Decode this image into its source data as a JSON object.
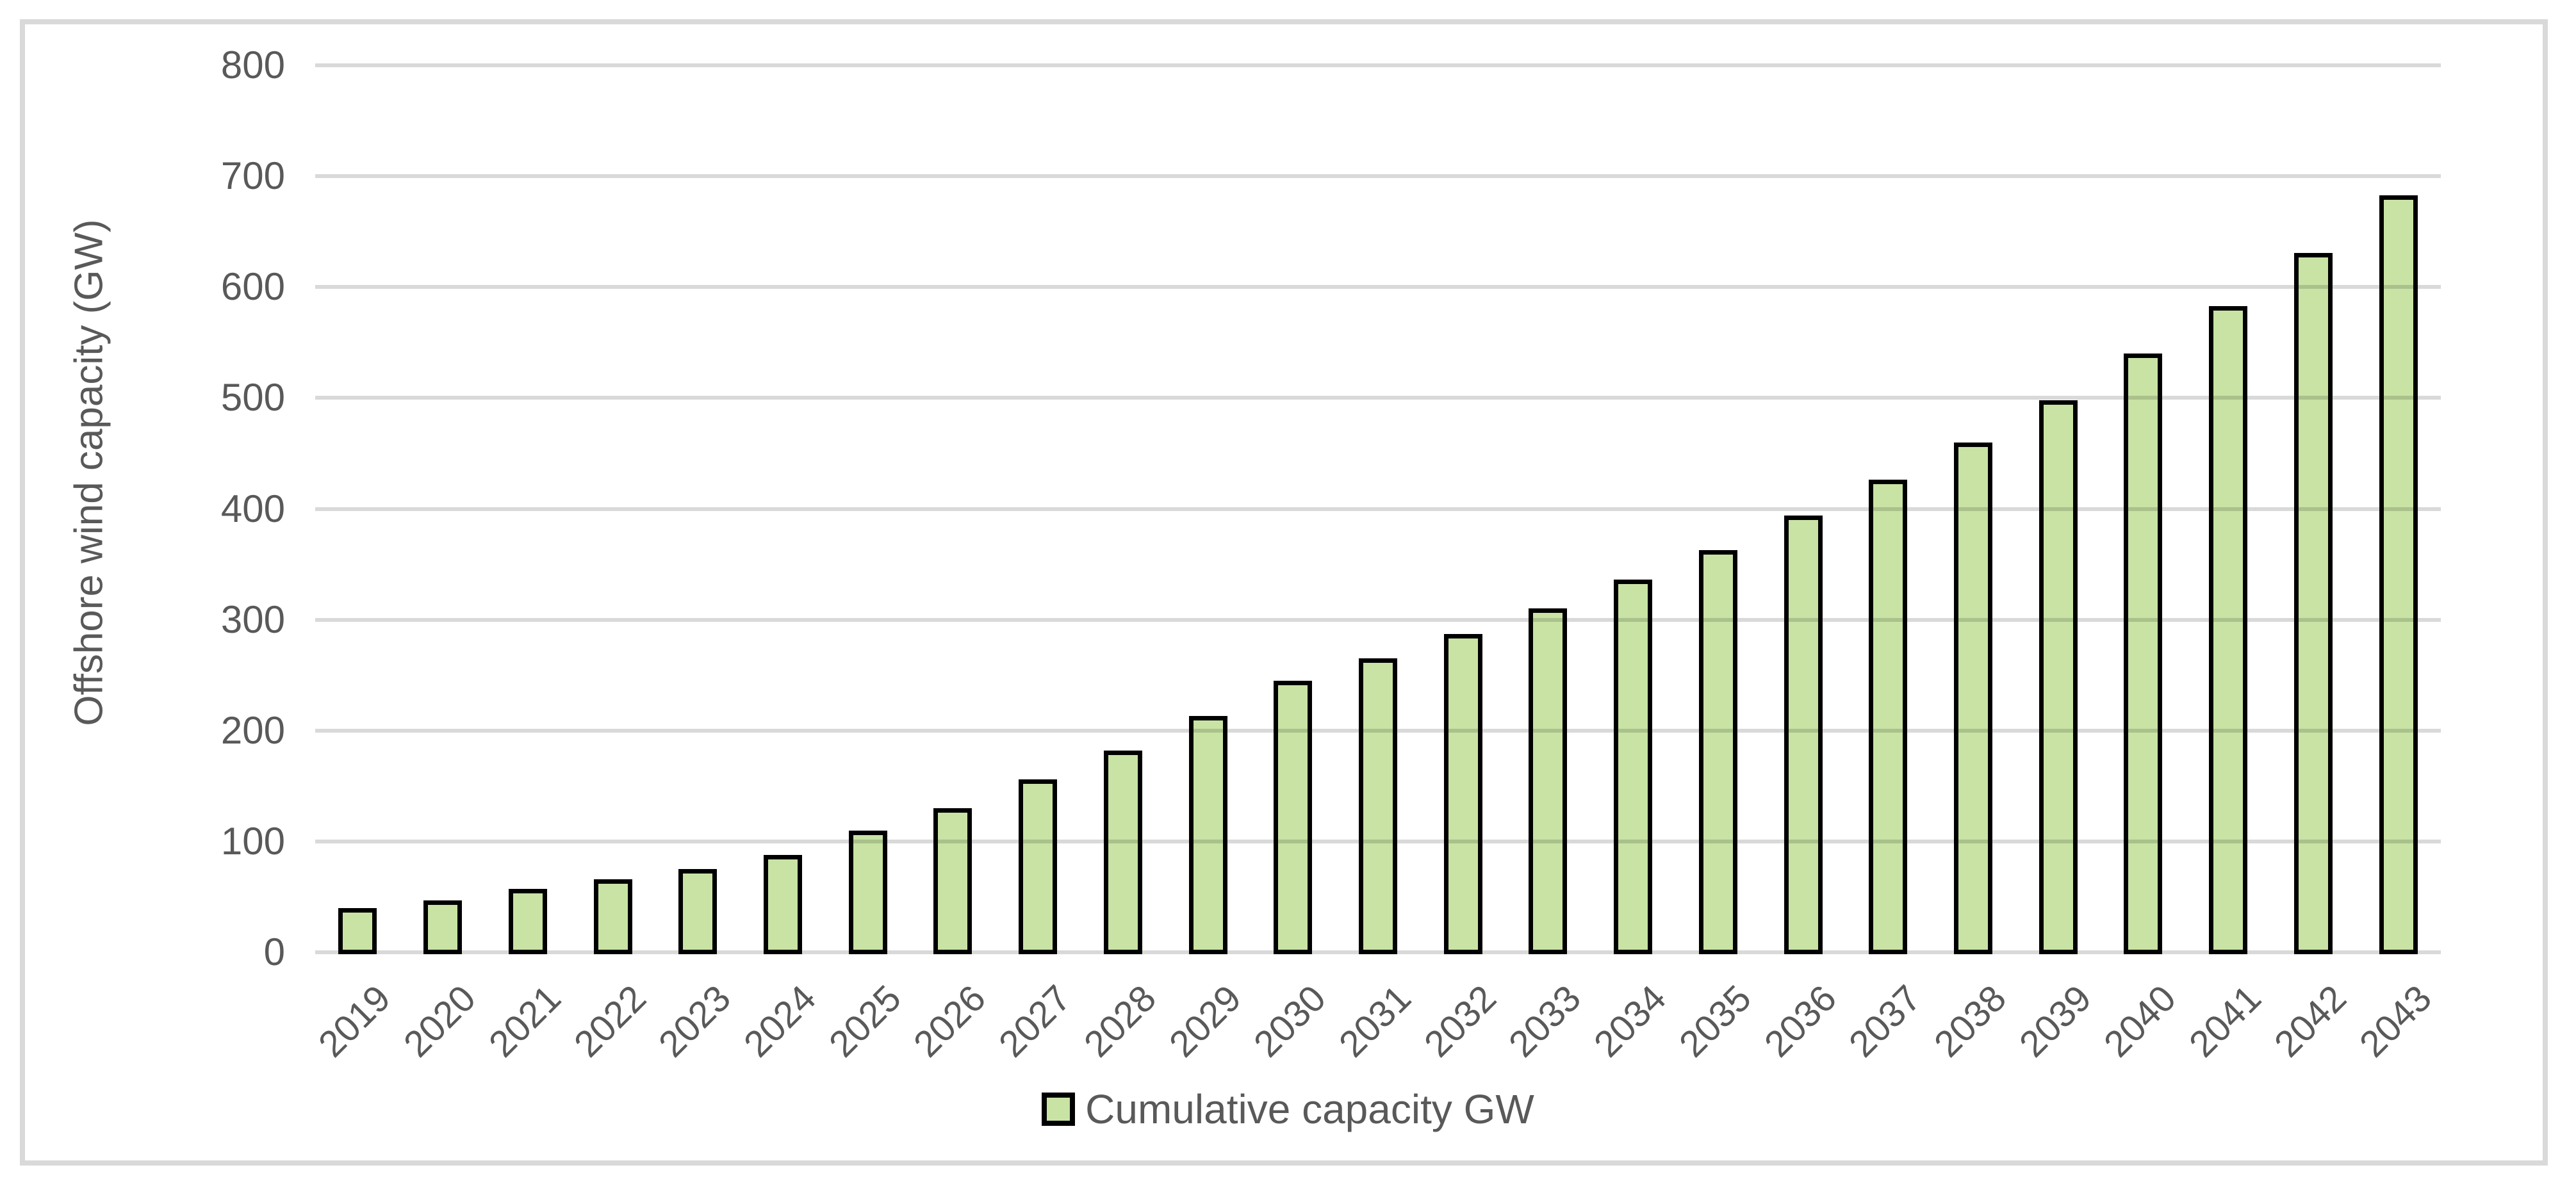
{
  "chart_data": {
    "type": "bar",
    "title": "",
    "ylabel": "Offshore wind capacity (GW)",
    "xlabel": "",
    "legend_label": "Cumulative capacity GW",
    "legend_position": "bottom",
    "grid": true,
    "ylim": [
      0,
      800
    ],
    "ytick_step": 100,
    "yticks": [
      0,
      100,
      200,
      300,
      400,
      500,
      600,
      700,
      800
    ],
    "categories": [
      "2019",
      "2020",
      "2021",
      "2022",
      "2023",
      "2024",
      "2025",
      "2026",
      "2027",
      "2028",
      "2029",
      "2030",
      "2031",
      "2032",
      "2033",
      "2034",
      "2035",
      "2036",
      "2037",
      "2038",
      "2039",
      "2040",
      "2041",
      "2042",
      "2043"
    ],
    "values": [
      40,
      47,
      57,
      66,
      75,
      88,
      110,
      130,
      156,
      182,
      213,
      245,
      265,
      287,
      310,
      336,
      363,
      394,
      426,
      460,
      498,
      540,
      583,
      631,
      683
    ],
    "colors": {
      "bar_fill": "#c8e3a4",
      "bar_border": "#000000",
      "gridline": "#d9d9d9",
      "text": "#595959",
      "frame": "#d9d9d9"
    }
  }
}
